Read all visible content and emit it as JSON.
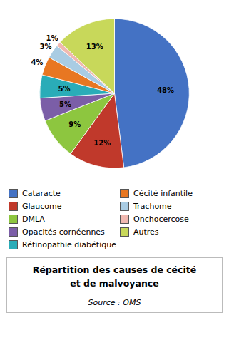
{
  "chart_data": {
    "type": "pie",
    "title": "Répartition des causes de cécité\net de malvoyance",
    "source": "Source : OMS",
    "categories": [
      "Cataracte",
      "Glaucome",
      "DMLA",
      "Opacités cornéennes",
      "Rétinopathie diabétique",
      "Cécité infantile",
      "Trachome",
      "Onchocercose",
      "Autres"
    ],
    "values": [
      48,
      12,
      9,
      5,
      5,
      4,
      3,
      1,
      13
    ],
    "value_labels": [
      "48%",
      "12%",
      "9%",
      "5%",
      "5%",
      "4%",
      "3%",
      "1%",
      "13%"
    ],
    "colors": [
      "#4472C4",
      "#C0392B",
      "#8DC63F",
      "#7B5EA7",
      "#2AACB8",
      "#E87722",
      "#A9CCE3",
      "#F0B8B0",
      "#C8D85A"
    ],
    "data_labels": true,
    "legend": "bottom"
  }
}
